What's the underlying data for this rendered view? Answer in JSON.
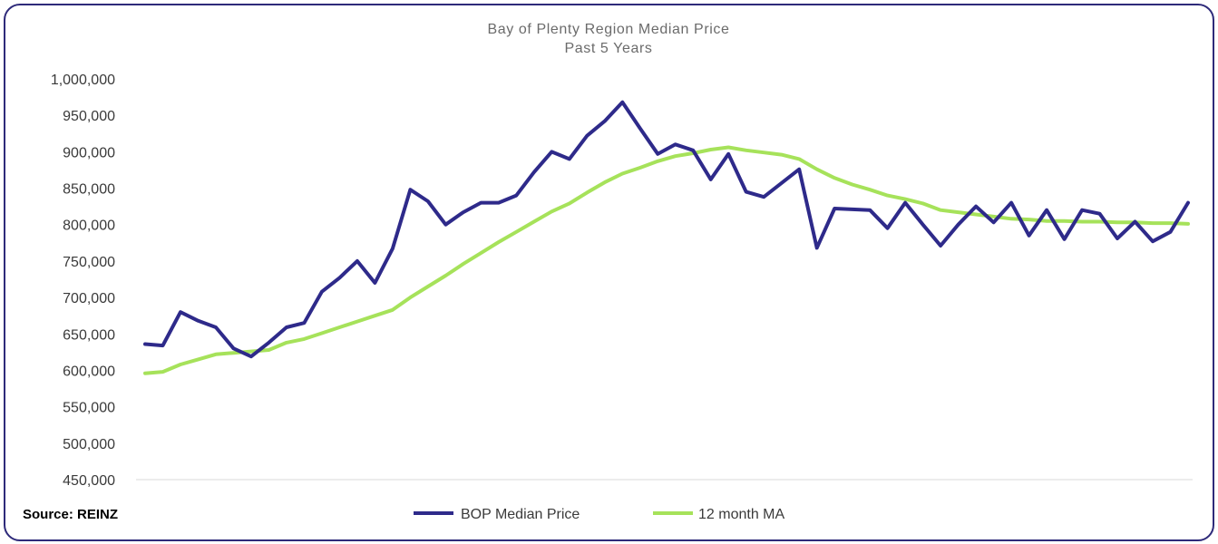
{
  "chart_data": {
    "type": "line",
    "title": "Bay of Plenty Region Median Price",
    "subtitle": "Past 5 Years",
    "ylim": [
      450000,
      1000000
    ],
    "yticks": [
      1000000,
      950000,
      900000,
      850000,
      800000,
      750000,
      700000,
      650000,
      600000,
      550000,
      500000,
      450000
    ],
    "ytick_labels": [
      "1,000,000",
      "950,000",
      "900,000",
      "850,000",
      "800,000",
      "750,000",
      "700,000",
      "650,000",
      "600,000",
      "550,000",
      "500,000",
      "450,000"
    ],
    "xlabel": "",
    "ylabel": "",
    "x_count": 60,
    "legend_position": "bottom",
    "series": [
      {
        "name": "BOP Median Price",
        "color": "#2e2a8a",
        "values": [
          636000,
          634000,
          680000,
          668000,
          659000,
          630000,
          619000,
          638000,
          659000,
          665000,
          708000,
          727000,
          750000,
          720000,
          767000,
          848000,
          832000,
          800000,
          817000,
          830000,
          830000,
          840000,
          872000,
          900000,
          890000,
          922000,
          942000,
          968000,
          932000,
          897000,
          910000,
          902000,
          862000,
          897000,
          845000,
          838000,
          857000,
          876000,
          768000,
          822000,
          821000,
          820000,
          795000,
          830000,
          800000,
          771000,
          800000,
          825000,
          803000,
          830000,
          785000,
          820000,
          780000,
          820000,
          815000,
          781000,
          804000,
          777000,
          790000,
          830000
        ]
      },
      {
        "name": "12 month MA",
        "color": "#a6e25a",
        "values": [
          596000,
          598000,
          608000,
          615000,
          622000,
          624000,
          626000,
          628000,
          638000,
          643000,
          651000,
          659000,
          667000,
          675000,
          683000,
          700000,
          715000,
          730000,
          746000,
          761000,
          776000,
          790000,
          804000,
          818000,
          829000,
          844000,
          858000,
          870000,
          878000,
          887000,
          894000,
          898000,
          903000,
          906000,
          902000,
          899000,
          896000,
          890000,
          876000,
          864000,
          855000,
          848000,
          840000,
          835000,
          829000,
          820000,
          817000,
          814000,
          811000,
          808000,
          807000,
          805000,
          805000,
          804000,
          804000,
          803000,
          803000,
          802000,
          802000,
          801000
        ]
      }
    ]
  },
  "source": {
    "label": "Source: REINZ"
  }
}
